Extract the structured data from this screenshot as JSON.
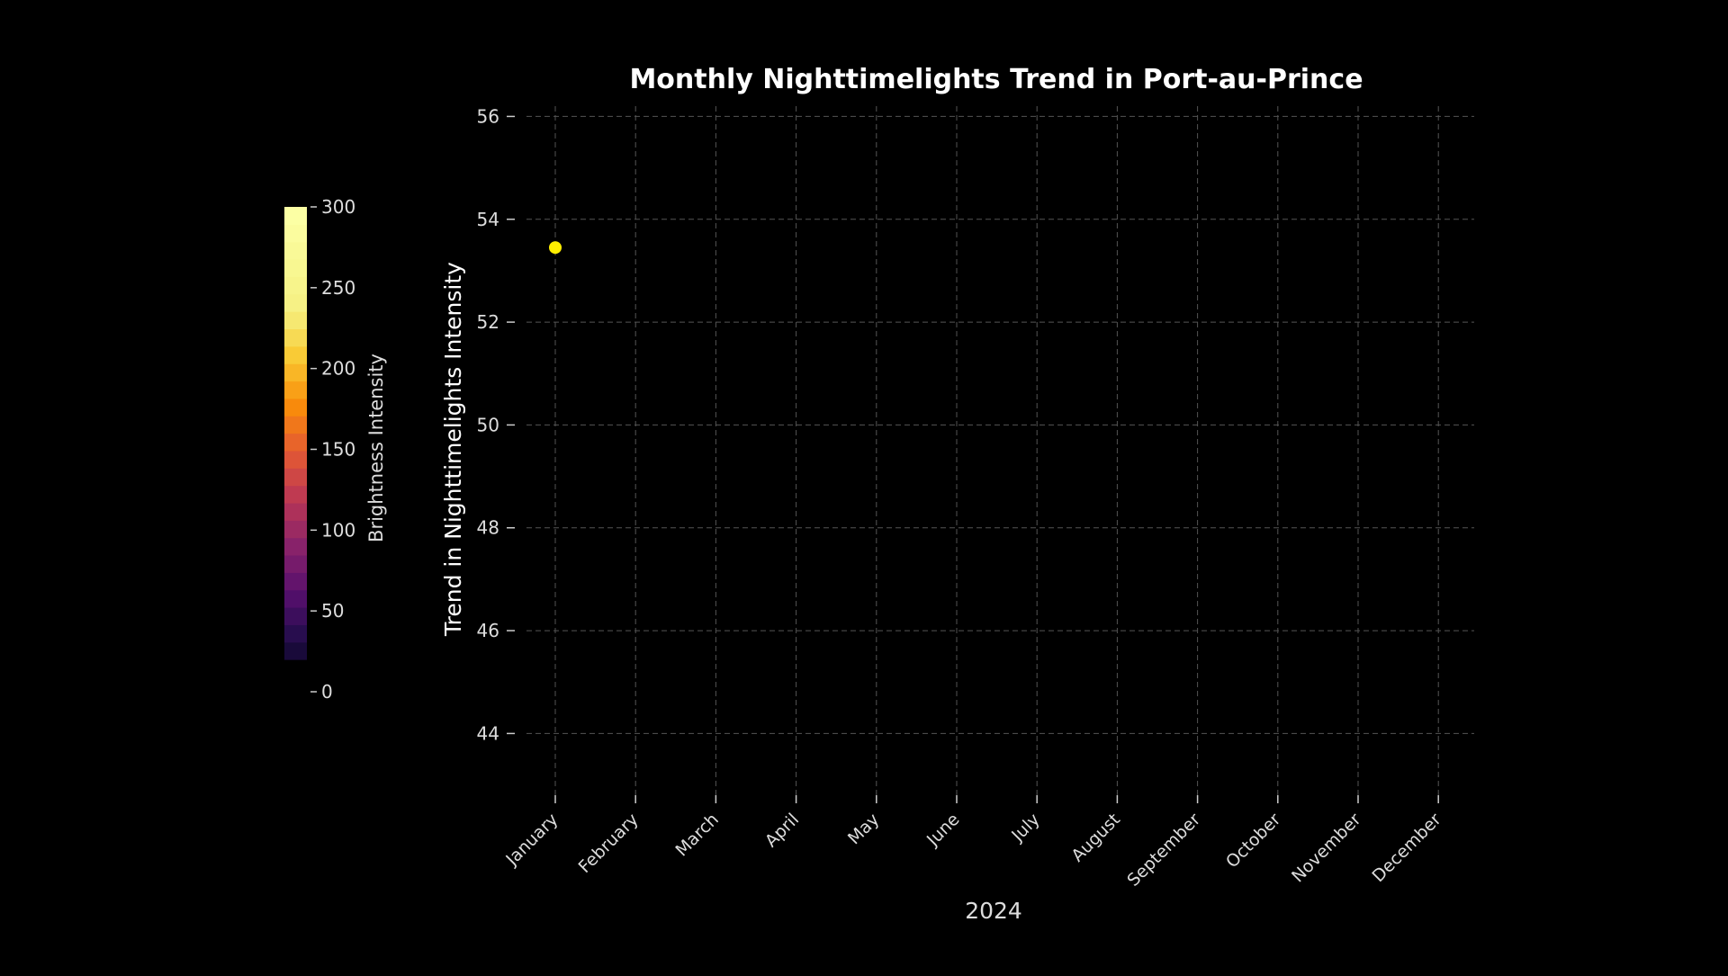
{
  "chart_data": {
    "type": "scatter",
    "title": "Monthly Nighttimelights Trend in Port-au-Prince",
    "xlabel": "2024",
    "ylabel": "Trend in Nighttimelights Intensity",
    "categories": [
      "January",
      "February",
      "March",
      "April",
      "May",
      "June",
      "July",
      "August",
      "September",
      "October",
      "November",
      "December"
    ],
    "series": [
      {
        "x": [
          "January"
        ],
        "values": [
          53.45
        ],
        "color": "#ffee00"
      }
    ],
    "ylim": [
      42.8,
      56.2
    ],
    "yticks": [
      44,
      46,
      48,
      50,
      52,
      54,
      56
    ],
    "grid": true,
    "colorbar": {
      "label": "Brightness Intensity",
      "range": [
        0,
        300
      ],
      "ticks": [
        0,
        50,
        100,
        150,
        200,
        250,
        300
      ],
      "colormap": "inferno"
    }
  },
  "colors": {
    "background": "#000000",
    "text": "#ffffff",
    "grid": "#555555",
    "marker": "#ffee00"
  }
}
